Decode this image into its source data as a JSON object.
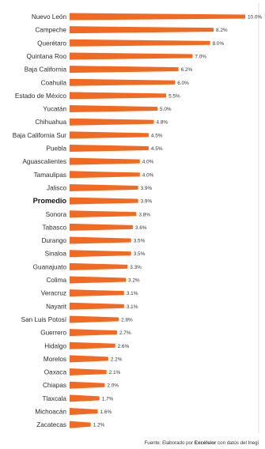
{
  "chart_data": {
    "type": "bar",
    "orientation": "horizontal",
    "categories": [
      "Nuevo León",
      "Campeche",
      "Querétaro",
      "Quintana Roo",
      "Baja California",
      "Coahuila",
      "Estado de México",
      "Yucatán",
      "Chihuahua",
      "Baja California Sur",
      "Puebla",
      "Aguascalientes",
      "Tamaulipas",
      "Jalisco",
      "Promedio",
      "Sonora",
      "Tabasco",
      "Durango",
      "Sinaloa",
      "Guanajuato",
      "Colima",
      "Veracruz",
      "Nayarit",
      "San Luis Potosí",
      "Guerrero",
      "Hidalgo",
      "Morelos",
      "Oaxaca",
      "Chiapas",
      "Tlaxcala",
      "Michoacán",
      "Zacatecas"
    ],
    "values": [
      10.0,
      8.2,
      8.0,
      7.0,
      6.2,
      6.0,
      5.5,
      5.0,
      4.8,
      4.5,
      4.5,
      4.0,
      4.0,
      3.9,
      3.9,
      3.8,
      3.6,
      3.5,
      3.5,
      3.3,
      3.2,
      3.1,
      3.1,
      2.8,
      2.7,
      2.6,
      2.2,
      2.1,
      2.0,
      1.7,
      1.6,
      1.2
    ],
    "value_labels": [
      "10.0%",
      "8.2%",
      "8.0%",
      "7.0%",
      "6.2%",
      "6.0%",
      "5.5%",
      "5.0%",
      "4.8%",
      "4.5%",
      "4.5%",
      "4.0%",
      "4.0%",
      "3.9%",
      "3.9%",
      "3.8%",
      "3.6%",
      "3.5%",
      "3.5%",
      "3.3%",
      "3.2%",
      "3.1%",
      "3.1%",
      "2.8%",
      "2.7%",
      "2.6%",
      "2.2%",
      "2.1%",
      "2.0%",
      "1.7%",
      "1.6%",
      "1.2%"
    ],
    "highlight_category": "Promedio",
    "xlim": [
      0,
      10
    ],
    "bar_color": "#f26a21",
    "grid": false,
    "legend": "none",
    "source": {
      "prefix": "Fuente: Elaborado por",
      "brand": "Excélsior",
      "suffix": "con datos del Inegi"
    }
  }
}
